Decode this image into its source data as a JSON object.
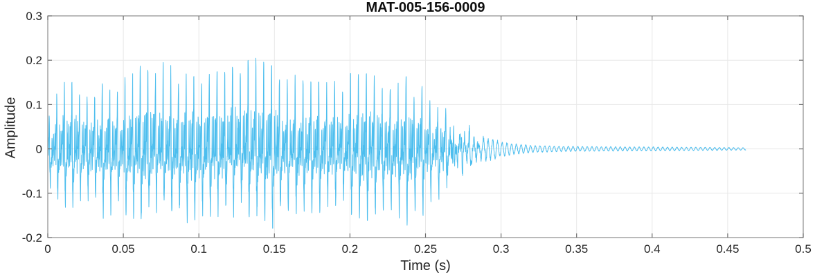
{
  "chart_data": {
    "type": "line",
    "title": "MAT-005-156-0009",
    "xlabel": "Time (s)",
    "ylabel": "Amplitude",
    "xlim": [
      0,
      0.5
    ],
    "ylim": [
      -0.2,
      0.3
    ],
    "xticks": [
      0,
      0.05,
      0.1,
      0.15,
      0.2,
      0.25,
      0.3,
      0.35,
      0.4,
      0.45,
      0.5
    ],
    "xtick_labels": [
      "0",
      "0.05",
      "0.1",
      "0.15",
      "0.2",
      "0.25",
      "0.3",
      "0.35",
      "0.4",
      "0.45",
      "0.5"
    ],
    "yticks": [
      -0.2,
      -0.1,
      0,
      0.1,
      0.2,
      0.3
    ],
    "ytick_labels": [
      "-0.2",
      "-0.1",
      "0",
      "0.1",
      "0.2",
      "0.3"
    ],
    "grid": true,
    "legend_position": "none",
    "colors": {
      "line": "#4DBEEE",
      "grid": "#E7E7E7",
      "axis_box": "#8C8C8C",
      "tick_mark": "#6E6E6E",
      "tick_text": "#262626",
      "title_text": "#0F0F0F",
      "background": "#FFFFFF"
    },
    "series": [
      {
        "name": "audio waveform",
        "color": "#4DBEEE",
        "signal": {
          "kind": "speech-like audio waveform",
          "duration_s": 0.462,
          "fundamental_hz": 195,
          "ring_hz": 320,
          "peak_amplitude": 0.215,
          "peak_time_s": 0.13,
          "envelope_upper": [
            [
              0.0,
              0.09
            ],
            [
              0.002,
              0.1
            ],
            [
              0.01,
              0.15
            ],
            [
              0.02,
              0.15
            ],
            [
              0.03,
              0.15
            ],
            [
              0.04,
              0.15
            ],
            [
              0.05,
              0.16
            ],
            [
              0.06,
              0.185
            ],
            [
              0.07,
              0.2
            ],
            [
              0.08,
              0.195
            ],
            [
              0.09,
              0.17
            ],
            [
              0.1,
              0.165
            ],
            [
              0.11,
              0.17
            ],
            [
              0.12,
              0.19
            ],
            [
              0.13,
              0.215
            ],
            [
              0.135,
              0.21
            ],
            [
              0.14,
              0.2
            ],
            [
              0.15,
              0.185
            ],
            [
              0.16,
              0.17
            ],
            [
              0.17,
              0.16
            ],
            [
              0.18,
              0.15
            ],
            [
              0.19,
              0.16
            ],
            [
              0.2,
              0.17
            ],
            [
              0.21,
              0.17
            ],
            [
              0.22,
              0.165
            ],
            [
              0.23,
              0.17
            ],
            [
              0.24,
              0.16
            ],
            [
              0.245,
              0.15
            ],
            [
              0.25,
              0.135
            ],
            [
              0.26,
              0.11
            ],
            [
              0.27,
              0.08
            ],
            [
              0.28,
              0.055
            ],
            [
              0.29,
              0.035
            ],
            [
              0.3,
              0.02
            ],
            [
              0.31,
              0.013
            ],
            [
              0.32,
              0.009
            ],
            [
              0.34,
              0.007
            ],
            [
              0.36,
              0.006
            ],
            [
              0.4,
              0.005
            ],
            [
              0.44,
              0.004
            ],
            [
              0.462,
              0.003
            ]
          ],
          "envelope_lower": [
            [
              0.0,
              -0.05
            ],
            [
              0.002,
              -0.12
            ],
            [
              0.01,
              -0.13
            ],
            [
              0.02,
              -0.14
            ],
            [
              0.03,
              -0.15
            ],
            [
              0.04,
              -0.16
            ],
            [
              0.05,
              -0.17
            ],
            [
              0.06,
              -0.17
            ],
            [
              0.07,
              -0.15
            ],
            [
              0.08,
              -0.16
            ],
            [
              0.09,
              -0.17
            ],
            [
              0.1,
              -0.16
            ],
            [
              0.11,
              -0.15
            ],
            [
              0.12,
              -0.16
            ],
            [
              0.13,
              -0.16
            ],
            [
              0.14,
              -0.17
            ],
            [
              0.15,
              -0.18
            ],
            [
              0.16,
              -0.17
            ],
            [
              0.17,
              -0.16
            ],
            [
              0.18,
              -0.15
            ],
            [
              0.19,
              -0.14
            ],
            [
              0.2,
              -0.15
            ],
            [
              0.21,
              -0.16
            ],
            [
              0.22,
              -0.17
            ],
            [
              0.23,
              -0.17
            ],
            [
              0.24,
              -0.18
            ],
            [
              0.245,
              -0.175
            ],
            [
              0.25,
              -0.15
            ],
            [
              0.26,
              -0.12
            ],
            [
              0.27,
              -0.09
            ],
            [
              0.28,
              -0.06
            ],
            [
              0.29,
              -0.04
            ],
            [
              0.3,
              -0.022
            ],
            [
              0.31,
              -0.014
            ],
            [
              0.32,
              -0.01
            ],
            [
              0.34,
              -0.007
            ],
            [
              0.36,
              -0.006
            ],
            [
              0.4,
              -0.005
            ],
            [
              0.44,
              -0.004
            ],
            [
              0.462,
              -0.003
            ]
          ]
        }
      }
    ]
  }
}
